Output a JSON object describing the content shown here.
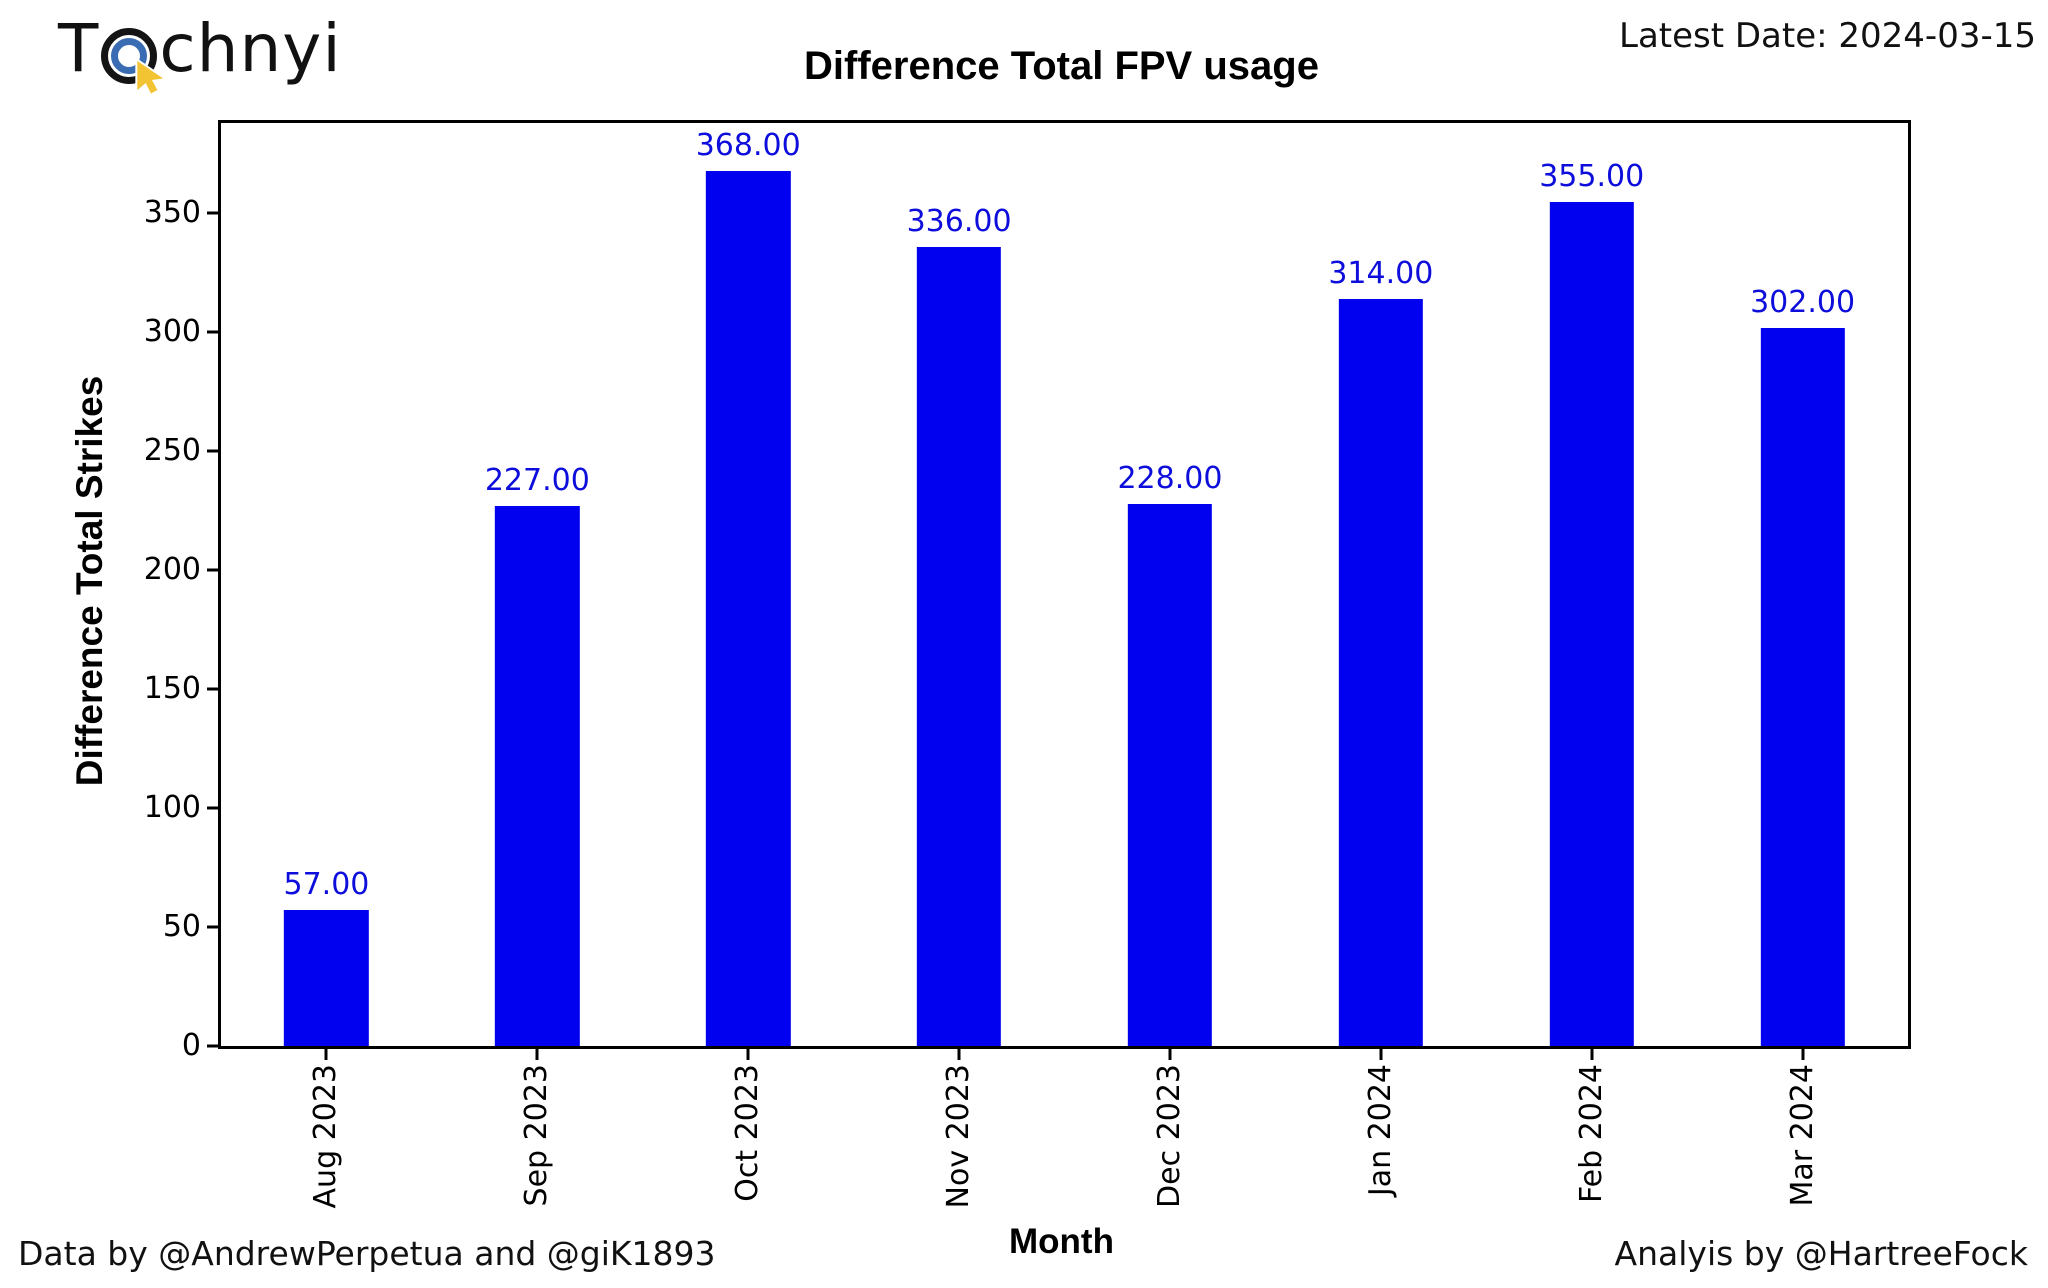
{
  "branding": {
    "logo_prefix": "T",
    "logo_suffix": "chnyi",
    "icon": "target-cursor-icon",
    "icon_colors": {
      "ring_outer": "#141414",
      "ring_inner": "#3a6cb4",
      "cursor": "#f2c433"
    }
  },
  "header": {
    "latest_date_label": "Latest Date: 2024-03-15"
  },
  "footer": {
    "left": "Data by @AndrewPerpetua and @giK1893",
    "right": "Analyis by @HartreeFock"
  },
  "chart_data": {
    "type": "bar",
    "title": "Difference Total FPV usage",
    "xlabel": "Month",
    "ylabel": "Difference Total Strikes",
    "categories": [
      "Aug 2023",
      "Sep 2023",
      "Oct 2023",
      "Nov 2023",
      "Dec 2023",
      "Jan 2024",
      "Feb 2024",
      "Mar 2024"
    ],
    "values": [
      57,
      227,
      368,
      336,
      228,
      314,
      355,
      302
    ],
    "value_labels": [
      "57.00",
      "227.00",
      "368.00",
      "336.00",
      "228.00",
      "314.00",
      "355.00",
      "302.00"
    ],
    "bar_color": "#0101ef",
    "value_label_color": "#0e0edc",
    "ylim": [
      0,
      388
    ],
    "yticks": [
      0,
      50,
      100,
      150,
      200,
      250,
      300,
      350
    ],
    "x_tick_rotation": 90,
    "grid": false,
    "legend": false
  }
}
